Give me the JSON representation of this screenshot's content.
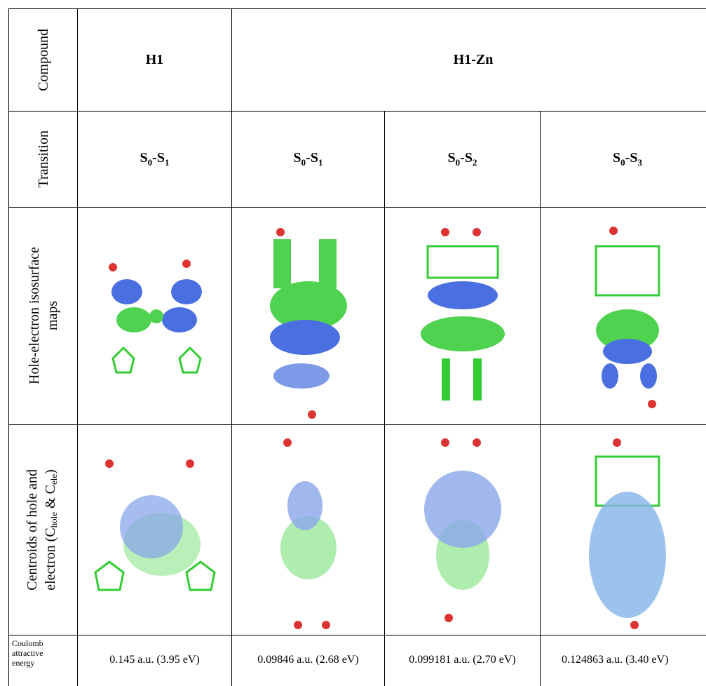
{
  "table": {
    "row_headers": {
      "compound": "Compound",
      "transition": "Transition",
      "maps": [
        "Hole-electron isosurface",
        "maps"
      ],
      "centroids": {
        "line1": "Centroids of  hole and",
        "line2": [
          "electron (C",
          "hole",
          " & C",
          "ele",
          ")"
        ]
      },
      "coulomb": [
        "Coulomb",
        "attractive",
        "energy"
      ]
    },
    "compounds": [
      "H1",
      "H1-Zn"
    ],
    "transitions": [
      [
        "S",
        "0",
        "-S",
        "1"
      ],
      [
        "S",
        "0",
        "-S",
        "1"
      ],
      [
        "S",
        "0",
        "-S",
        "2"
      ],
      [
        "S",
        "0",
        "-S",
        "3"
      ]
    ],
    "coulomb_values": [
      "0.145 a.u. (3.95 eV)",
      "0.09846 a.u. (2.68 eV)",
      "0.099181 a.u. (2.70 eV)",
      "0.124863 a.u. (3.40 eV)"
    ]
  }
}
